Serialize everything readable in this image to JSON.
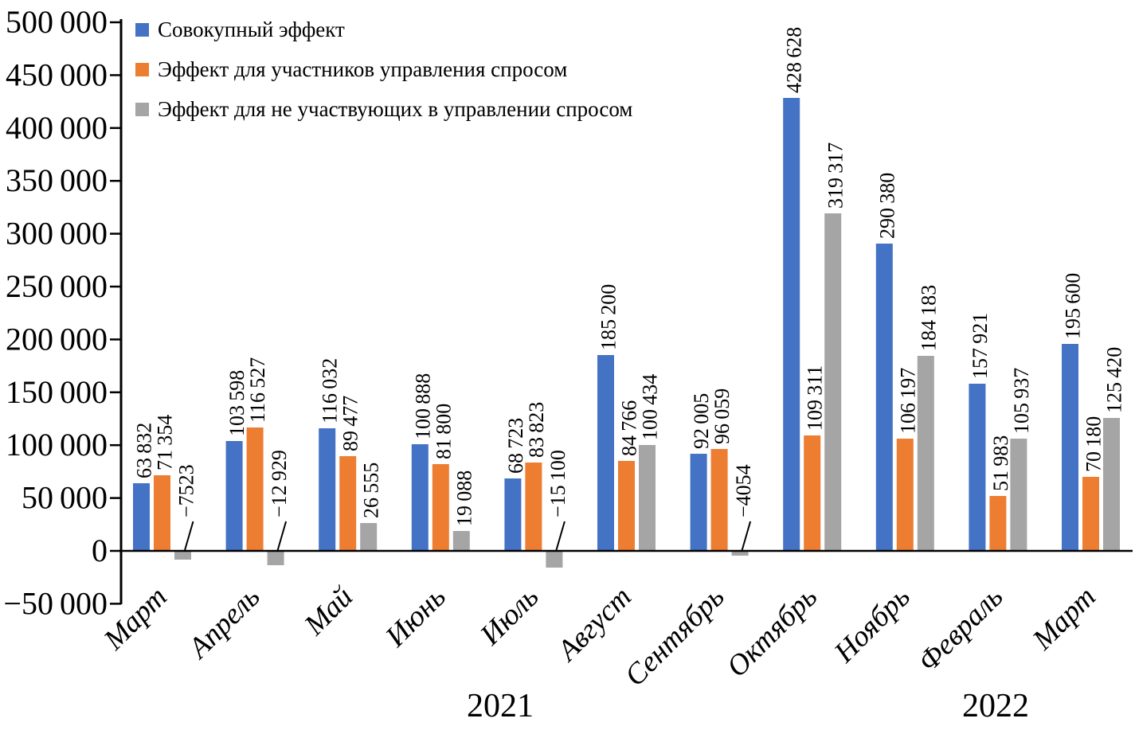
{
  "chart_data": {
    "type": "bar",
    "title": "",
    "xlabel": "",
    "ylabel": "",
    "grid": false,
    "legend_position": "top-left",
    "categories": [
      "Март",
      "Апрель",
      "Май",
      "Июнь",
      "Июль",
      "Август",
      "Сентябрь",
      "Октябрь",
      "Ноябрь",
      "Февраль",
      "Март"
    ],
    "years": [
      "2021",
      "2022"
    ],
    "y_axis": {
      "min": -50000,
      "max": 500000,
      "step": 50000,
      "tick_labels": [
        "500 000",
        "450 000",
        "400 000",
        "350 000",
        "300 000",
        "250 000",
        "200 000",
        "150 000",
        "100 000",
        "50 000",
        "0",
        "−50 000"
      ]
    },
    "series": [
      {
        "name": "Совокупный эффект",
        "color": "#4472C4",
        "values": [
          63832,
          103598,
          116032,
          100888,
          68723,
          185200,
          92005,
          428628,
          290380,
          157921,
          195600
        ],
        "labels": [
          "63 832",
          "103 598",
          "116 032",
          "100 888",
          "68 723",
          "185 200",
          "92 005",
          "428 628",
          "290 380",
          "157 921",
          "195 600"
        ]
      },
      {
        "name": "Эффект для участников управления спросом",
        "color": "#ED7D31",
        "values": [
          71354,
          116527,
          89477,
          81800,
          83823,
          84766,
          96059,
          109311,
          106197,
          51983,
          70180
        ],
        "labels": [
          "71 354",
          "116 527",
          "89 477",
          "81 800",
          "83 823",
          "84 766",
          "96 059",
          "109 311",
          "106 197",
          "51 983",
          "70 180"
        ]
      },
      {
        "name": "Эффект для не участвующих в управлении спросом",
        "color": "#A5A5A5",
        "values": [
          -7523,
          -12929,
          26555,
          19088,
          -15100,
          100434,
          -4054,
          319317,
          184183,
          105937,
          125420
        ],
        "labels": [
          "−7523",
          "−12 929",
          "26 555",
          "19 088",
          "−15 100",
          "100 434",
          "−4054",
          "319 317",
          "184 183",
          "105 937",
          "125 420"
        ]
      }
    ]
  }
}
